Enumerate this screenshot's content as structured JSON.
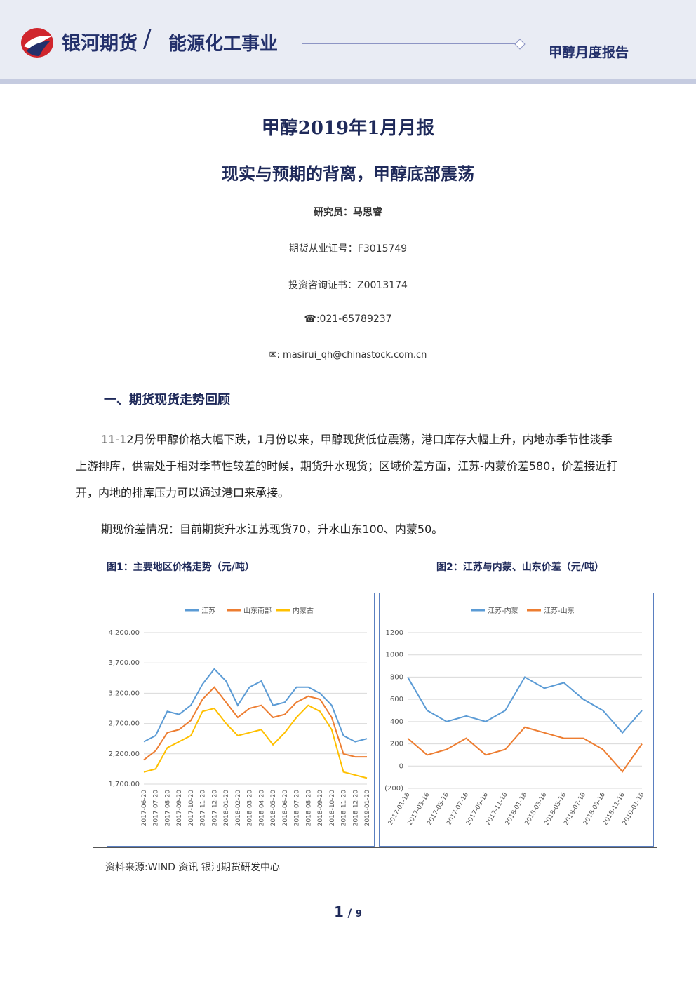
{
  "header": {
    "brand": "银河期货",
    "division": "能源化工事业",
    "report_type": "甲醇月度报告"
  },
  "title": "甲醇2019年1月月报",
  "subtitle": "现实与预期的背离，甲醇底部震荡",
  "author": {
    "researcher": "研究员：马思睿",
    "license": "期货从业证号：F3015749",
    "consult": "投资咨询证书：Z0013174",
    "phone": "☎:021-65789237",
    "email": "✉: masirui_qh@chinastock.com.cn"
  },
  "section": "一、期货现货走势回顾",
  "paragraphs": [
    "11-12月份甲醇价格大幅下跌，1月份以来，甲醇现货低位震荡，港口库存大幅上升，内地亦季节性淡季上游排库，供需处于相对季节性较差的时候，期货升水现货；区域价差方面，江苏-内蒙价差580，价差接近打开，内地的排库压力可以通过港口来承接。",
    "期现价差情况：目前期货升水江苏现货70，升水山东100、内蒙50。"
  ],
  "figures": [
    {
      "caption": "图1：主要地区价格走势（元/吨）",
      "chart": {
        "type": "line",
        "categories": [
          "2017-06-20",
          "2017-07-20",
          "2017-08-20",
          "2017-09-20",
          "2017-10-20",
          "2017-11-20",
          "2017-12-20",
          "2018-01-20",
          "2018-02-20",
          "2018-03-20",
          "2018-04-20",
          "2018-05-20",
          "2018-06-20",
          "2018-07-20",
          "2018-08-20",
          "2018-09-20",
          "2018-10-20",
          "2018-11-20",
          "2018-12-20",
          "2019-01-20"
        ],
        "series": [
          {
            "name": "江苏",
            "color": "#5b9bd5",
            "values": [
              2400,
              2500,
              2900,
              2850,
              3000,
              3350,
              3600,
              3400,
              3000,
              3300,
              3400,
              3000,
              3050,
              3300,
              3300,
              3200,
              3000,
              2500,
              2400,
              2450
            ]
          },
          {
            "name": "山东南部",
            "color": "#ed7d31",
            "values": [
              2100,
              2250,
              2550,
              2600,
              2750,
              3100,
              3300,
              3050,
              2800,
              2950,
              3000,
              2800,
              2850,
              3050,
              3150,
              3100,
              2800,
              2200,
              2150,
              2150
            ]
          },
          {
            "name": "内蒙古",
            "color": "#ffc000",
            "values": [
              1900,
              1950,
              2300,
              2400,
              2500,
              2900,
              2950,
              2700,
              2500,
              2550,
              2600,
              2350,
              2550,
              2800,
              3000,
              2900,
              2600,
              1900,
              1850,
              1800
            ]
          }
        ],
        "ylim": [
          1700,
          4200
        ],
        "yticks": [
          {
            "value": 1700,
            "label": "1,700.00"
          },
          {
            "value": 2200,
            "label": "2,200.00"
          },
          {
            "value": 2700,
            "label": "2,700.00"
          },
          {
            "value": 3200,
            "label": "3,200.00"
          },
          {
            "value": 3700,
            "label": "3,700.00"
          },
          {
            "value": 4200,
            "label": "4,200.00"
          }
        ],
        "grid": true
      }
    },
    {
      "caption": "图2：江苏与内蒙、山东价差（元/吨）",
      "chart": {
        "type": "line",
        "categories": [
          "2017-01-16",
          "2017-03-16",
          "2017-05-16",
          "2017-07-16",
          "2017-09-16",
          "2017-11-16",
          "2018-01-16",
          "2018-03-16",
          "2018-05-16",
          "2018-07-16",
          "2018-09-16",
          "2018-11-16",
          "2019-01-16"
        ],
        "series": [
          {
            "name": "江苏-内蒙",
            "color": "#5b9bd5",
            "values": [
              800,
              500,
              400,
              450,
              400,
              500,
              800,
              700,
              750,
              600,
              500,
              300,
              500
            ]
          },
          {
            "name": "江苏-山东",
            "color": "#ed7d31",
            "values": [
              250,
              100,
              150,
              250,
              100,
              150,
              350,
              300,
              250,
              250,
              150,
              -50,
              200
            ]
          }
        ],
        "ylim": [
          -200,
          1200
        ],
        "yticks": [
          {
            "value": -200,
            "label": "(200)"
          },
          0,
          200,
          400,
          600,
          800,
          1000,
          1200
        ],
        "grid": true
      }
    }
  ],
  "source": "资料来源:WIND 资讯    银河期货研发中心",
  "page": {
    "current": 1,
    "total": 9
  }
}
